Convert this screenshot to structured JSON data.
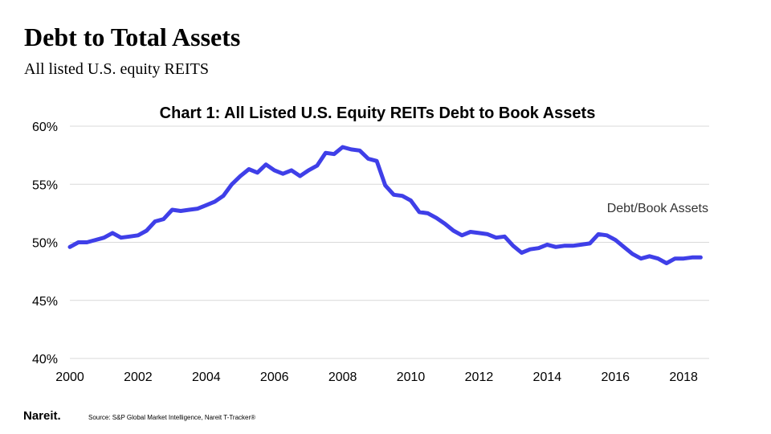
{
  "slide": {
    "title": "Debt to Total Assets",
    "subtitle": "All listed U.S. equity REITS"
  },
  "footer": {
    "logo_text": "Nareit.",
    "source": "Source: S&P Global Market Intelligence, Nareit T-Tracker®"
  },
  "colors": {
    "series": "#3f3fe8",
    "gridline": "#d9d9d9"
  },
  "chart_data": {
    "type": "line",
    "title": "Chart 1: All Listed U.S. Equity REITs Debt to Book Assets",
    "xlabel": "",
    "ylabel": "",
    "xlim": [
      2000,
      2018.75
    ],
    "ylim": [
      40,
      60
    ],
    "x_ticks": [
      2000,
      2002,
      2004,
      2006,
      2008,
      2010,
      2012,
      2014,
      2016,
      2018
    ],
    "y_ticks": [
      40,
      45,
      50,
      55,
      60
    ],
    "y_tick_labels": [
      "40%",
      "45%",
      "50%",
      "55%",
      "60%"
    ],
    "grid": true,
    "series": [
      {
        "name": "Debt/Book Assets",
        "x": [
          2000.0,
          2000.25,
          2000.5,
          2000.75,
          2001.0,
          2001.25,
          2001.5,
          2001.75,
          2002.0,
          2002.25,
          2002.5,
          2002.75,
          2003.0,
          2003.25,
          2003.5,
          2003.75,
          2004.0,
          2004.25,
          2004.5,
          2004.75,
          2005.0,
          2005.25,
          2005.5,
          2005.75,
          2006.0,
          2006.25,
          2006.5,
          2006.75,
          2007.0,
          2007.25,
          2007.5,
          2007.75,
          2008.0,
          2008.25,
          2008.5,
          2008.75,
          2009.0,
          2009.25,
          2009.5,
          2009.75,
          2010.0,
          2010.25,
          2010.5,
          2010.75,
          2011.0,
          2011.25,
          2011.5,
          2011.75,
          2012.0,
          2012.25,
          2012.5,
          2012.75,
          2013.0,
          2013.25,
          2013.5,
          2013.75,
          2014.0,
          2014.25,
          2014.5,
          2014.75,
          2015.0,
          2015.25,
          2015.5,
          2015.75,
          2016.0,
          2016.25,
          2016.5,
          2016.75,
          2017.0,
          2017.25,
          2017.5,
          2017.75,
          2018.0,
          2018.25,
          2018.5
        ],
        "values": [
          49.6,
          50.0,
          50.0,
          50.2,
          50.4,
          50.8,
          50.4,
          50.5,
          50.6,
          51.0,
          51.8,
          52.0,
          52.8,
          52.7,
          52.8,
          52.9,
          53.2,
          53.5,
          54.0,
          55.0,
          55.7,
          56.3,
          56.0,
          56.7,
          56.2,
          55.9,
          56.2,
          55.7,
          56.2,
          56.6,
          57.7,
          57.6,
          58.2,
          58.0,
          57.9,
          57.2,
          57.0,
          54.9,
          54.1,
          54.0,
          53.6,
          52.6,
          52.5,
          52.1,
          51.6,
          51.0,
          50.6,
          50.9,
          50.8,
          50.7,
          50.4,
          50.5,
          49.7,
          49.1,
          49.4,
          49.5,
          49.8,
          49.6,
          49.7,
          49.7,
          49.8,
          49.9,
          50.7,
          50.6,
          50.2,
          49.6,
          49.0,
          48.6,
          48.8,
          48.6,
          48.2,
          48.6,
          48.6,
          48.7,
          48.7
        ]
      }
    ]
  }
}
